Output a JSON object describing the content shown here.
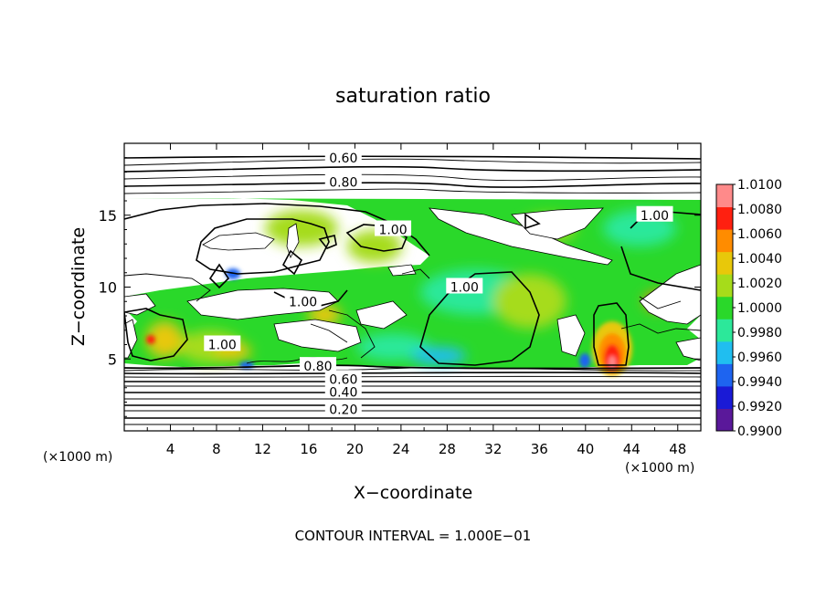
{
  "chart_data": {
    "type": "heatmap",
    "title": "saturation ratio",
    "xlabel": "X−coordinate",
    "ylabel": "Z−coordinate",
    "x_unit": "(×1000 m)",
    "z_unit": "(×1000 m)",
    "xlim": [
      0,
      50
    ],
    "ylim": [
      0,
      20
    ],
    "x_ticks": [
      4,
      8,
      12,
      16,
      20,
      24,
      28,
      32,
      36,
      40,
      44,
      48
    ],
    "x_tick_labels": [
      "4",
      "8",
      "12",
      "16",
      "20",
      "24",
      "28",
      "32",
      "36",
      "40",
      "44",
      "48"
    ],
    "y_ticks": [
      5,
      10,
      15
    ],
    "y_tick_labels": [
      "5",
      "10",
      "15"
    ],
    "colorbar": {
      "levels": [
        0.99,
        0.992,
        0.994,
        0.996,
        0.998,
        1.0,
        1.002,
        1.004,
        1.006,
        1.008,
        1.01
      ],
      "labels": [
        "0.9900",
        "0.9920",
        "0.9940",
        "0.9960",
        "0.9980",
        "1.0000",
        "1.0020",
        "1.0040",
        "1.0060",
        "1.0080",
        "1.0100"
      ],
      "colors": [
        "#5a189a",
        "#1a1ad6",
        "#1e64f0",
        "#20bef0",
        "#2ce89a",
        "#2ad82a",
        "#a6dc1a",
        "#e8c80a",
        "#ff8c00",
        "#ff2010",
        "#ff8a8a"
      ]
    },
    "contour_lines": [
      {
        "label": "0.20",
        "label_x": 19,
        "label_z": 1.5
      },
      {
        "label": "0.40",
        "label_x": 19,
        "label_z": 2.7
      },
      {
        "label": "0.60",
        "label_x": 19,
        "label_z": 3.6
      },
      {
        "label": "0.80",
        "label_x": 16.8,
        "label_z": 4.5
      },
      {
        "label": "0.60",
        "label_x": 19,
        "label_z": 19.0
      },
      {
        "label": "0.80",
        "label_x": 19,
        "label_z": 17.3
      },
      {
        "label": "1.00",
        "label_x": 23.3,
        "label_z": 14.0
      },
      {
        "label": "1.00",
        "label_x": 29.5,
        "label_z": 10.0
      },
      {
        "label": "1.00",
        "label_x": 46,
        "label_z": 15.0
      },
      {
        "label": "1.00",
        "label_x": 15.5,
        "label_z": 9.0
      },
      {
        "label": "1.00",
        "label_x": 8.5,
        "label_z": 6.0
      }
    ],
    "footer": "CONTOUR INTERVAL = 1.000E−01"
  }
}
